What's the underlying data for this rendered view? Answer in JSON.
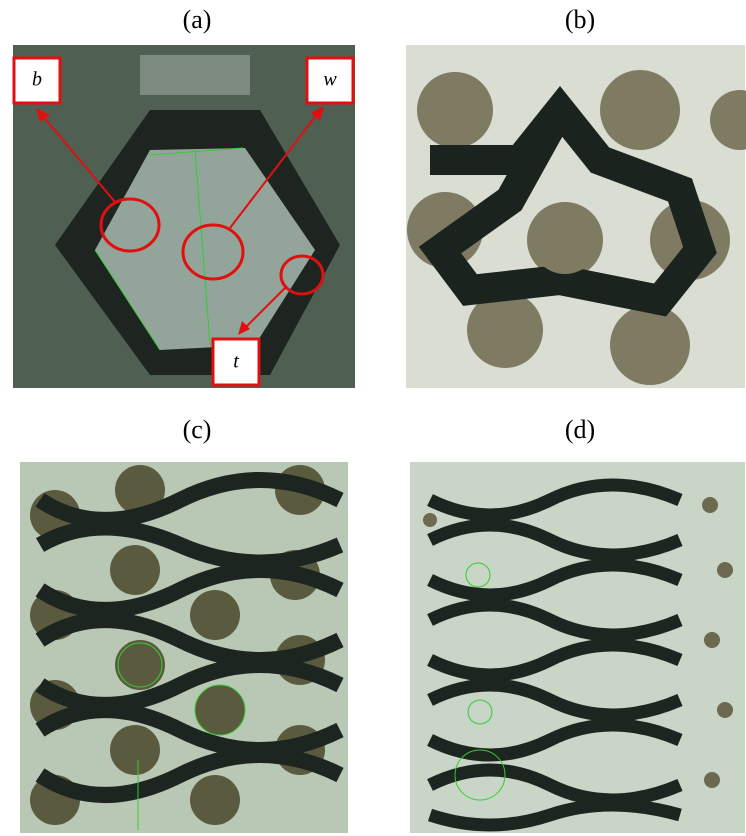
{
  "panels": [
    {
      "label": "(a)"
    },
    {
      "label": "(b)"
    },
    {
      "label": "(c)"
    },
    {
      "label": "(d)"
    }
  ],
  "annotations": [
    {
      "label": "b"
    },
    {
      "label": "w"
    },
    {
      "label": "t"
    }
  ]
}
